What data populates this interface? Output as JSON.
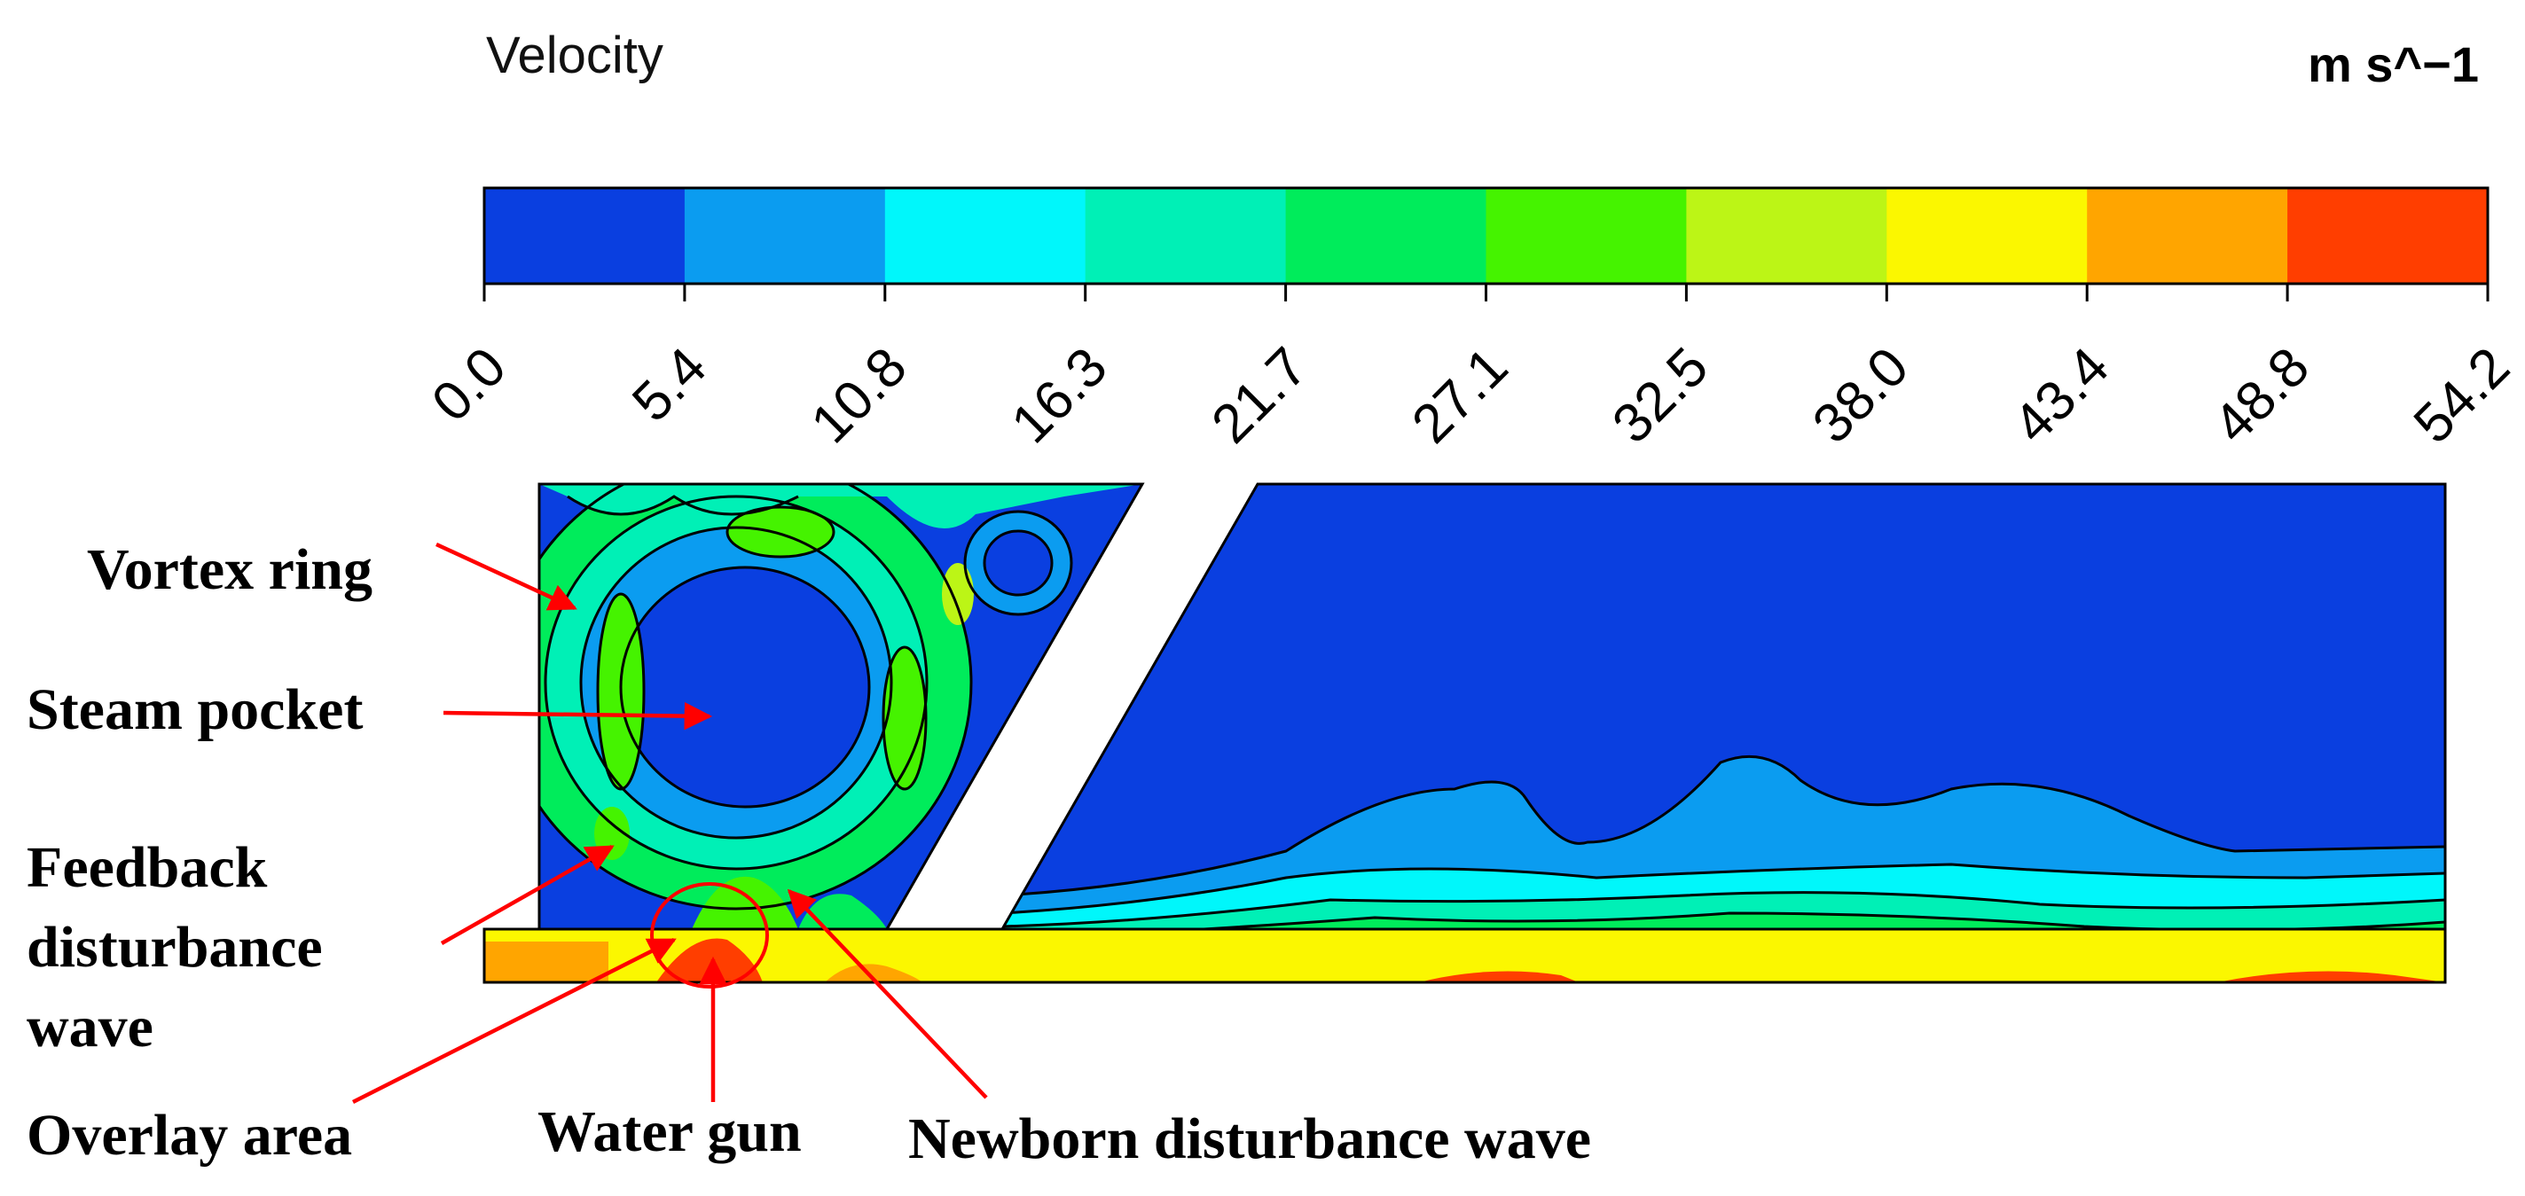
{
  "legend": {
    "title": "Velocity",
    "unit": "m s^−1",
    "ticks": [
      "0.0",
      "5.4",
      "10.8",
      "16.3",
      "21.7",
      "27.1",
      "32.5",
      "38.0",
      "43.4",
      "48.8",
      "54.2"
    ],
    "colors": [
      "#0a3fe0",
      "#0b9cf0",
      "#00f7fb",
      "#00f0b6",
      "#00ec5b",
      "#45f300",
      "#bcf516",
      "#fbf700",
      "#ffa500",
      "#ff3e00"
    ]
  },
  "annotations": {
    "vortex_ring": "Vortex ring",
    "steam_pocket": "Steam pocket",
    "feedback_line1": "Feedback",
    "feedback_line2": "disturbance",
    "feedback_line3": "wave",
    "overlay_area": "Overlay area",
    "water_gun": "Water gun",
    "newborn_wave": "Newborn disturbance wave"
  },
  "colors": {
    "annotation_arrow": "#ff0000",
    "contour_line": "#000000",
    "background": "#ffffff"
  }
}
